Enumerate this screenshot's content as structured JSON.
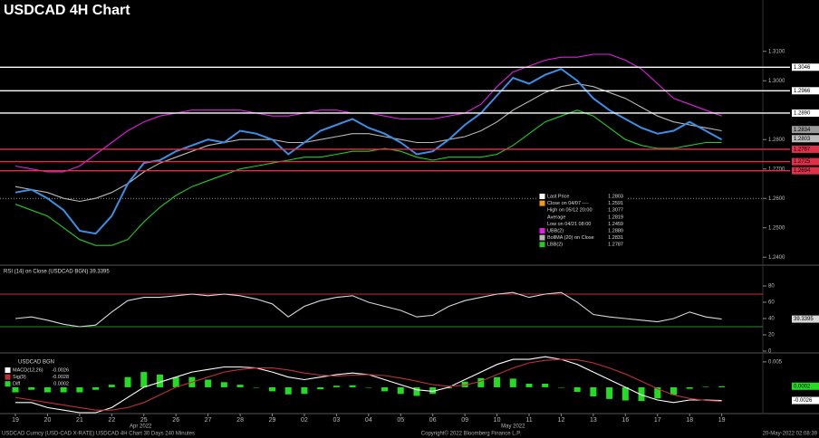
{
  "chart_data": [
    {
      "type": "line",
      "title": "USDCAD 4H Chart",
      "x": [
        0,
        0.5,
        1,
        1.5,
        2,
        2.5,
        3,
        3.5,
        4,
        4.5,
        5,
        5.5,
        6,
        6.5,
        7,
        7.5,
        8,
        8.5,
        9,
        9.5,
        10,
        10.5,
        11,
        11.5,
        12,
        12.5,
        13,
        13.5,
        14,
        14.5,
        15,
        15.5,
        16,
        16.5,
        17,
        17.5,
        18,
        18.5,
        19,
        19.5,
        20,
        20.5,
        21,
        21.5,
        22
      ],
      "xlim": [
        -0.48,
        23.28
      ],
      "xticks": [
        {
          "value": 0,
          "label": "19"
        },
        {
          "value": 1,
          "label": "20"
        },
        {
          "value": 2,
          "label": "21"
        },
        {
          "value": 3,
          "label": "22"
        },
        {
          "value": 4,
          "label": "25"
        },
        {
          "value": 5,
          "label": "26"
        },
        {
          "value": 6,
          "label": "27"
        },
        {
          "value": 7,
          "label": "28"
        },
        {
          "value": 8,
          "label": "29"
        },
        {
          "value": 9,
          "label": "02"
        },
        {
          "value": 10,
          "label": "03"
        },
        {
          "value": 11,
          "label": "04"
        },
        {
          "value": 12,
          "label": "05"
        },
        {
          "value": 13,
          "label": "06"
        },
        {
          "value": 14,
          "label": "09"
        },
        {
          "value": 15,
          "label": "10"
        },
        {
          "value": 16,
          "label": "11"
        },
        {
          "value": 17,
          "label": "12"
        },
        {
          "value": 18,
          "label": "13"
        },
        {
          "value": 19,
          "label": "16"
        },
        {
          "value": 20,
          "label": "17"
        },
        {
          "value": 21,
          "label": "18"
        },
        {
          "value": 22,
          "label": "19"
        }
      ],
      "x_groups": [
        {
          "value": 3.9,
          "label": "Apr 2022"
        },
        {
          "value": 15.5,
          "label": "May 2022"
        }
      ],
      "ylim": [
        1.2376,
        1.325
      ],
      "yticks": [
        {
          "value": 1.24,
          "label": "1.2400"
        },
        {
          "value": 1.25,
          "label": "1.2500"
        },
        {
          "value": 1.26,
          "label": "1.2600"
        },
        {
          "value": 1.27,
          "label": "1.2700"
        },
        {
          "value": 1.28,
          "label": "1.2800"
        },
        {
          "value": 1.3,
          "label": "1.3000"
        },
        {
          "value": 1.31,
          "label": "1.3100"
        }
      ],
      "dotted_line": 1.26,
      "series": [
        {
          "color": "#b8b8b8",
          "values": [
            1.264,
            1.263,
            1.262,
            1.26,
            1.259,
            1.26,
            1.262,
            1.265,
            1.269,
            1.272,
            1.274,
            1.276,
            1.278,
            1.279,
            1.28,
            1.28,
            1.28,
            1.279,
            1.279,
            1.28,
            1.281,
            1.282,
            1.282,
            1.281,
            1.28,
            1.279,
            1.279,
            1.28,
            1.281,
            1.283,
            1.286,
            1.29,
            1.293,
            1.296,
            1.298,
            1.299,
            1.298,
            1.296,
            1.294,
            1.291,
            1.288,
            1.286,
            1.285,
            1.284,
            1.283
          ]
        },
        {
          "color": "#e020e0",
          "values": [
            1.271,
            1.27,
            1.269,
            1.269,
            1.271,
            1.275,
            1.279,
            1.283,
            1.286,
            1.288,
            1.289,
            1.29,
            1.29,
            1.29,
            1.29,
            1.289,
            1.288,
            1.288,
            1.289,
            1.29,
            1.29,
            1.289,
            1.289,
            1.288,
            1.287,
            1.287,
            1.287,
            1.288,
            1.289,
            1.292,
            1.298,
            1.303,
            1.305,
            1.307,
            1.308,
            1.308,
            1.309,
            1.309,
            1.307,
            1.304,
            1.299,
            1.294,
            1.292,
            1.29,
            1.288
          ]
        },
        {
          "color": "#22cc22",
          "values": [
            1.258,
            1.256,
            1.254,
            1.25,
            1.246,
            1.244,
            1.244,
            1.246,
            1.252,
            1.257,
            1.261,
            1.264,
            1.266,
            1.268,
            1.27,
            1.271,
            1.272,
            1.273,
            1.274,
            1.274,
            1.275,
            1.276,
            1.276,
            1.277,
            1.276,
            1.274,
            1.273,
            1.274,
            1.274,
            1.274,
            1.275,
            1.278,
            1.282,
            1.286,
            1.288,
            1.29,
            1.288,
            1.284,
            1.28,
            1.278,
            1.277,
            1.277,
            1.278,
            1.279,
            1.279
          ]
        },
        {
          "color": "#3a8fe8",
          "values": [
            1.262,
            1.263,
            1.26,
            1.256,
            1.249,
            1.248,
            1.254,
            1.265,
            1.272,
            1.273,
            1.276,
            1.278,
            1.28,
            1.279,
            1.283,
            1.282,
            1.28,
            1.275,
            1.279,
            1.283,
            1.285,
            1.287,
            1.284,
            1.282,
            1.279,
            1.275,
            1.276,
            1.28,
            1.285,
            1.289,
            1.295,
            1.301,
            1.299,
            1.302,
            1.304,
            1.3,
            1.294,
            1.29,
            1.287,
            1.284,
            1.282,
            1.283,
            1.286,
            1.283,
            1.28
          ]
        }
      ],
      "levels": [
        {
          "value": 1.3046,
          "color": "#ffffff"
        },
        {
          "value": 1.2966,
          "color": "#ffffff"
        },
        {
          "value": {
            "value": 1.289,
            "label": "1.2890"
          },
          "color": "#ffffff"
        },
        {
          "value": 1.2767,
          "color": "#e0304a"
        },
        {
          "value": 1.2725,
          "color": "#e0304a"
        },
        {
          "value": 1.2694,
          "color": "#e0304a"
        }
      ],
      "right_labels": [
        {
          "value": 1.2834,
          "color": "#9a9a9a"
        },
        {
          "value": 1.2803,
          "color": "#bcbcbc"
        }
      ],
      "legend": [
        {
          "name": "Last Price",
          "value": "1.2803",
          "color": "#ffffff"
        },
        {
          "name": "Close on 04/07 ----",
          "value": "1.2591",
          "color": "#f39c12"
        },
        {
          "name": "High on 05/12 20:00",
          "value": "1.3077",
          "color": "#000000"
        },
        {
          "name": "Average",
          "value": "1.2819",
          "color": "#000000"
        },
        {
          "name": "Low on 04/21 08:00",
          "value": "1.2459",
          "color": "#000000"
        },
        {
          "name": "UBB(2)",
          "value": "1.2880",
          "color": "#e020e0"
        },
        {
          "name": "BollMA (20)  on Close",
          "value": "1.2831",
          "color": "#b8b8b8"
        },
        {
          "name": "LBB(2)",
          "value": "1.2787",
          "color": "#22cc22"
        }
      ]
    },
    {
      "type": "line",
      "title": "RSI (14)  on Close (USDCAD BGN) 39.3395",
      "x": [
        0,
        0.5,
        1,
        1.5,
        2,
        2.5,
        3,
        3.5,
        4,
        4.5,
        5,
        5.5,
        6,
        6.5,
        7,
        7.5,
        8,
        8.5,
        9,
        9.5,
        10,
        10.5,
        11,
        11.5,
        12,
        12.5,
        13,
        13.5,
        14,
        14.5,
        15,
        15.5,
        16,
        16.5,
        17,
        17.5,
        18,
        18.5,
        19,
        19.5,
        20,
        20.5,
        21,
        21.5,
        22
      ],
      "xlim": [
        -0.48,
        23.28
      ],
      "ylim": [
        0,
        100
      ],
      "yticks": [
        0,
        20,
        40,
        60,
        80
      ],
      "levels": [
        {
          "value": 39.3395,
          "color": "#d8d8d8"
        }
      ],
      "bounds": [
        {
          "value": 70,
          "color": "#c0303a"
        },
        {
          "value": 30,
          "color": "#2a8a2a"
        }
      ],
      "series": [
        {
          "color": "#d8d8d8",
          "values": [
            40,
            42,
            38,
            33,
            30,
            32,
            48,
            62,
            66,
            66,
            68,
            70,
            68,
            70,
            68,
            64,
            58,
            42,
            55,
            62,
            66,
            68,
            60,
            55,
            50,
            42,
            44,
            55,
            62,
            66,
            70,
            72,
            66,
            70,
            72,
            60,
            45,
            42,
            40,
            38,
            36,
            40,
            48,
            42,
            39.3395
          ]
        }
      ]
    },
    {
      "type": "line",
      "title": "USDCAD BGN",
      "x": [
        0,
        0.5,
        1,
        1.5,
        2,
        2.5,
        3,
        3.5,
        4,
        4.5,
        5,
        5.5,
        6,
        6.5,
        7,
        7.5,
        8,
        8.5,
        9,
        9.5,
        10,
        10.5,
        11,
        11.5,
        12,
        12.5,
        13,
        13.5,
        14,
        14.5,
        15,
        15.5,
        16,
        16.5,
        17,
        17.5,
        18,
        18.5,
        19,
        19.5,
        20,
        20.5,
        21,
        21.5,
        22
      ],
      "xlim": [
        -0.48,
        23.28
      ],
      "ylim": [
        -0.005,
        0.0064
      ],
      "yticks": [
        0.005
      ],
      "levels": [
        {
          "value": {
            "value": 0.0002,
            "label": "0.0002"
          },
          "color": "#22dd22"
        },
        {
          "value": -0.0026,
          "color": "#ffffff"
        }
      ],
      "series": [
        {
          "type": "bar",
          "color": "#22dd22",
          "values": [
            -0.001,
            -0.0005,
            -0.001,
            -0.001,
            -0.001,
            -0.0005,
            0.0005,
            0.002,
            0.003,
            0.0025,
            0.002,
            0.002,
            0.0015,
            0.001,
            0.0005,
            0,
            -0.0008,
            -0.0014,
            -0.0013,
            -0.0004,
            0.0003,
            0.0004,
            0,
            -0.0008,
            -0.0013,
            -0.0017,
            -0.0013,
            -0.0002,
            0.0011,
            0.0018,
            0.002,
            0.0017,
            0.0007,
            0.0007,
            0,
            -0.0009,
            -0.0018,
            -0.0023,
            -0.0026,
            -0.0027,
            -0.0022,
            -0.0015,
            -0.0003,
            0.0001,
            0.0002
          ]
        },
        {
          "color": "#ffffff",
          "values": [
            -0.003,
            -0.003,
            -0.004,
            -0.0045,
            -0.005,
            -0.005,
            -0.004,
            -0.002,
            0,
            0.001,
            0.002,
            0.003,
            0.0035,
            0.004,
            0.004,
            0.0038,
            0.003,
            0.002,
            0.0015,
            0.002,
            0.0025,
            0.0028,
            0.0025,
            0.0015,
            0.0005,
            -0.0005,
            -0.0008,
            0,
            0.0015,
            0.003,
            0.0045,
            0.0055,
            0.0055,
            0.006,
            0.0055,
            0.0045,
            0.003,
            0.0015,
            0,
            -0.0015,
            -0.0025,
            -0.003,
            -0.0025,
            -0.0025,
            -0.0026
          ]
        },
        {
          "color": "#c0303a",
          "values": [
            -0.002,
            -0.0025,
            -0.003,
            -0.0035,
            -0.004,
            -0.0045,
            -0.0045,
            -0.004,
            -0.003,
            -0.0015,
            0,
            0.001,
            0.002,
            0.003,
            0.0035,
            0.0038,
            0.0038,
            0.0034,
            0.0028,
            0.0024,
            0.0022,
            0.0024,
            0.0025,
            0.0023,
            0.0018,
            0.0012,
            0.0005,
            0.0002,
            0.0004,
            0.0012,
            0.0025,
            0.0038,
            0.0048,
            0.0053,
            0.0055,
            0.0054,
            0.0048,
            0.0038,
            0.0026,
            0.0012,
            -0.0003,
            -0.0015,
            -0.0022,
            -0.0026,
            -0.0028
          ]
        }
      ],
      "legend": [
        {
          "name": "MACD(12,26)",
          "value": "-0.0026",
          "color": "#ffffff"
        },
        {
          "name": "Sig(9)",
          "value": "-0.0028",
          "color": "#c0303a"
        },
        {
          "name": "Diff",
          "value": "0.0002",
          "color": "#22dd22"
        }
      ]
    }
  ],
  "footer": {
    "left": "USDCAD Curncy (USD-CAD X-RATE) USDCAD 4H Chart 30 Days 240 Minutes",
    "center": "Copyright© 2022 Bloomberg Finance L.P.",
    "right": "20-May-2022 02:08:39"
  }
}
